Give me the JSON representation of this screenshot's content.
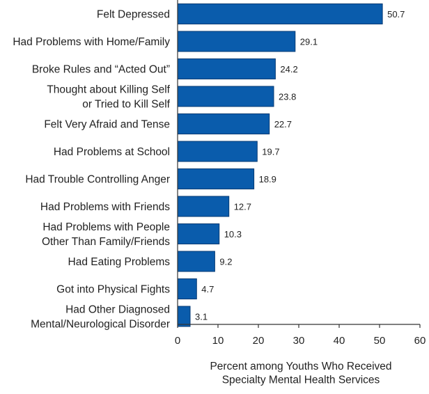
{
  "chart_data": {
    "type": "bar",
    "orientation": "horizontal",
    "title": "",
    "categories": [
      [
        "Felt Depressed"
      ],
      [
        "Had Problems with Home/Family"
      ],
      [
        "Broke Rules and “Acted Out”"
      ],
      [
        "Thought about Killing Self",
        "or Tried to Kill Self"
      ],
      [
        "Felt Very Afraid and Tense"
      ],
      [
        "Had Problems at School"
      ],
      [
        "Had Trouble Controlling Anger"
      ],
      [
        "Had Problems with Friends"
      ],
      [
        "Had Problems with People",
        "Other Than Family/Friends"
      ],
      [
        "Had Eating Problems"
      ],
      [
        "Got into Physical Fights"
      ],
      [
        "Had Other Diagnosed",
        "Mental/Neurological Disorder"
      ]
    ],
    "values": [
      50.7,
      29.1,
      24.2,
      23.8,
      22.7,
      19.7,
      18.9,
      12.7,
      10.3,
      9.2,
      4.7,
      3.1
    ],
    "value_labels": [
      "50.7",
      "29.1",
      "24.2",
      "23.8",
      "22.7",
      "19.7",
      "18.9",
      "12.7",
      "10.3",
      "9.2",
      "4.7",
      "3.1"
    ],
    "xlim": [
      0,
      60
    ],
    "xticks": [
      0,
      10,
      20,
      30,
      40,
      50,
      60
    ],
    "xlabel": [
      "Percent among Youths Who Received",
      "Specialty Mental Health Services"
    ],
    "ylabel": "",
    "grid": false,
    "legend": "none",
    "colors": {
      "bar_fill": "#0a5cac",
      "bar_stroke": "#063a73",
      "axis": "#333333",
      "text": "#222222"
    }
  }
}
